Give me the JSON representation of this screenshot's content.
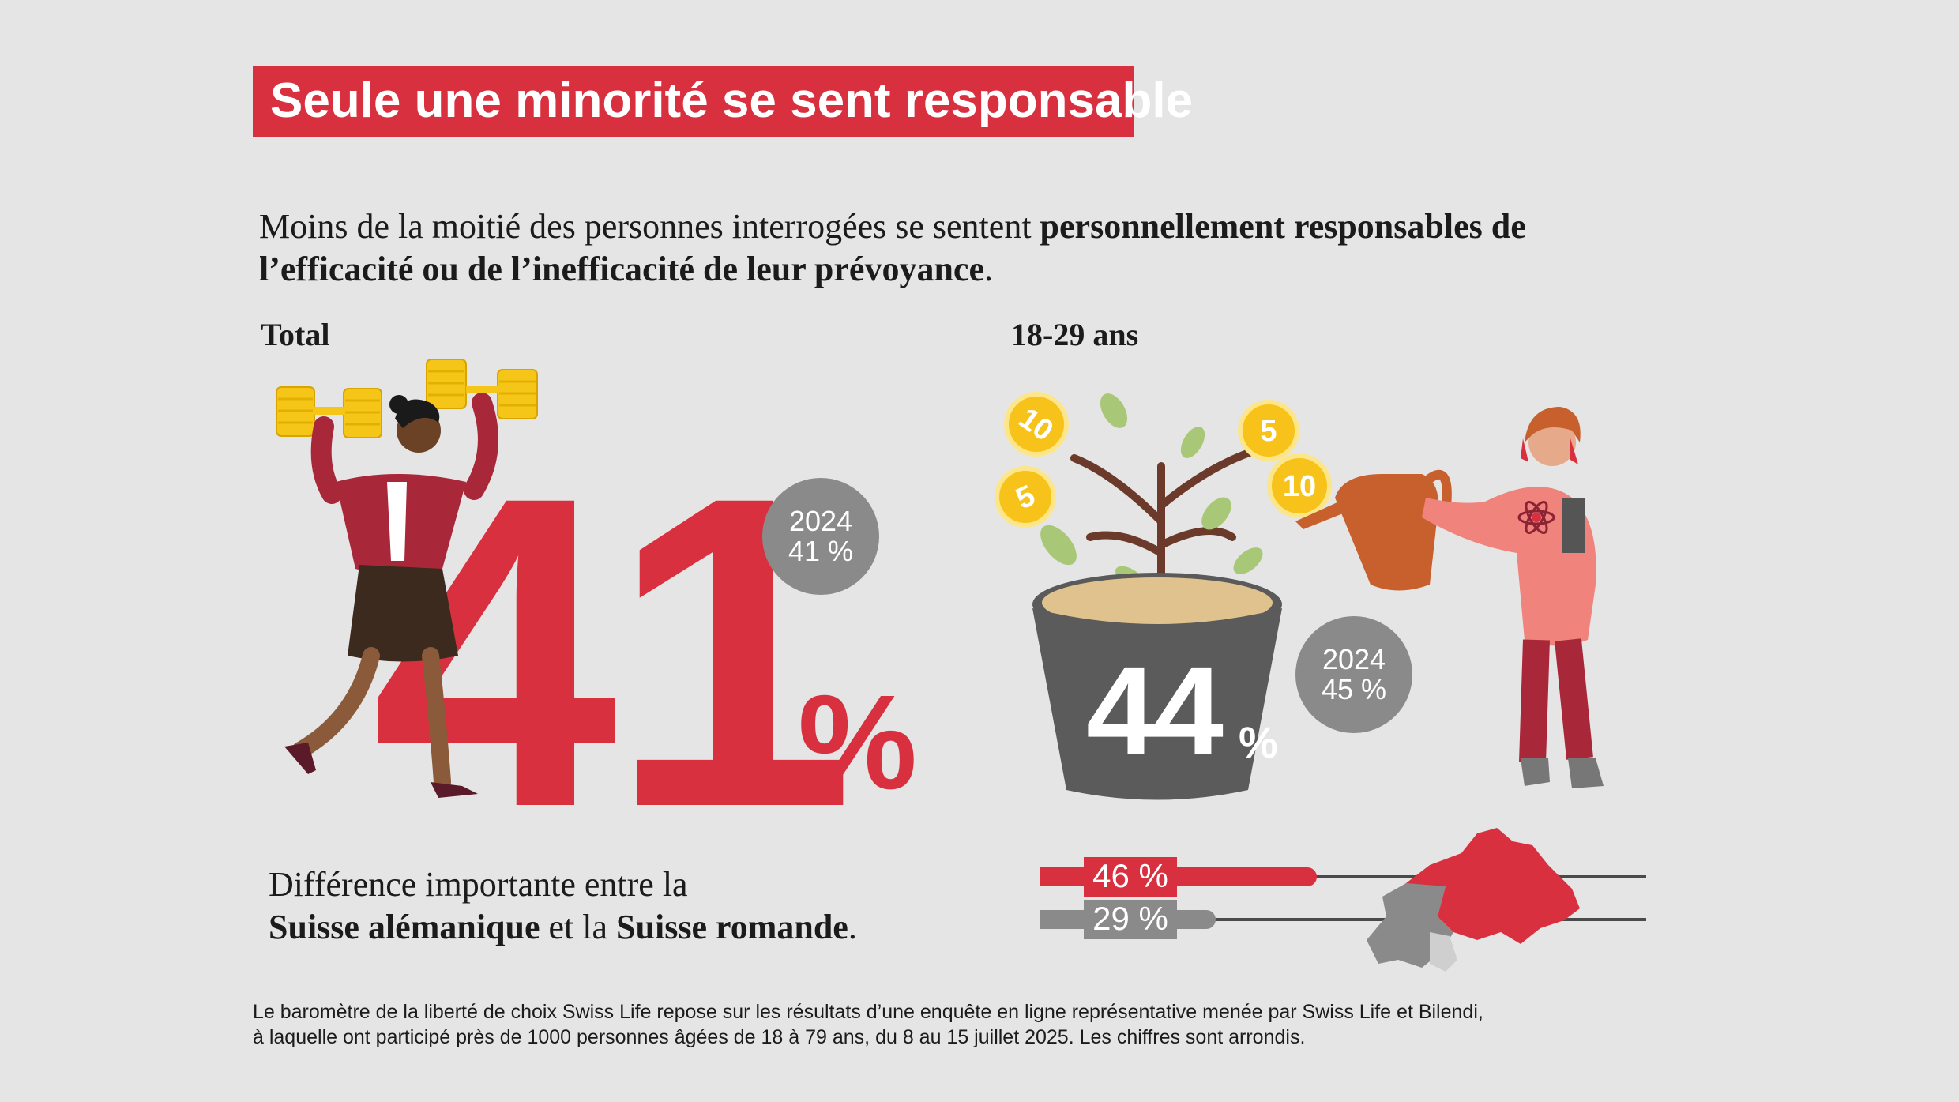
{
  "title": "Seule une minorité se sent responsable",
  "intro": {
    "plain": "Moins de la moitié des personnes interrogées se sentent ",
    "bold": "personnellement responsables de l’efficacité ou de l’inefficacité de leur prévoyance",
    "end": "."
  },
  "total": {
    "label": "Total",
    "value": "41",
    "unit": "%",
    "prev_year": "2024",
    "prev_value": "41 %"
  },
  "young": {
    "label": "18-29 ans",
    "value": "44",
    "unit": "%",
    "prev_year": "2024",
    "prev_value": "45 %",
    "coins": [
      "10",
      "5",
      "5",
      "10"
    ]
  },
  "regions": {
    "text_line1": "Différence importante entre la",
    "bold1": "Suisse alémanique",
    "mid": " et la ",
    "bold2": "Suisse romande",
    "end": ".",
    "german_label": "46 %",
    "german_value": 46,
    "french_label": "29 %",
    "french_value": 29,
    "colors": {
      "german": "#d9303f",
      "french": "#8a8a8a"
    }
  },
  "footnote": {
    "line1": "Le baromètre de la liberté de choix Swiss Life repose sur les résultats d’une enquête en ligne représentative menée par Swiss Life et Bilendi,",
    "line2": "à laquelle ont participé près de 1000 personnes âgées de 18 à 79 ans, du 8 au 15 juillet 2025. Les chiffres sont arrondis."
  },
  "colors": {
    "accent": "#d9303f",
    "gray": "#8a8a8a",
    "background": "#e5e5e5"
  }
}
